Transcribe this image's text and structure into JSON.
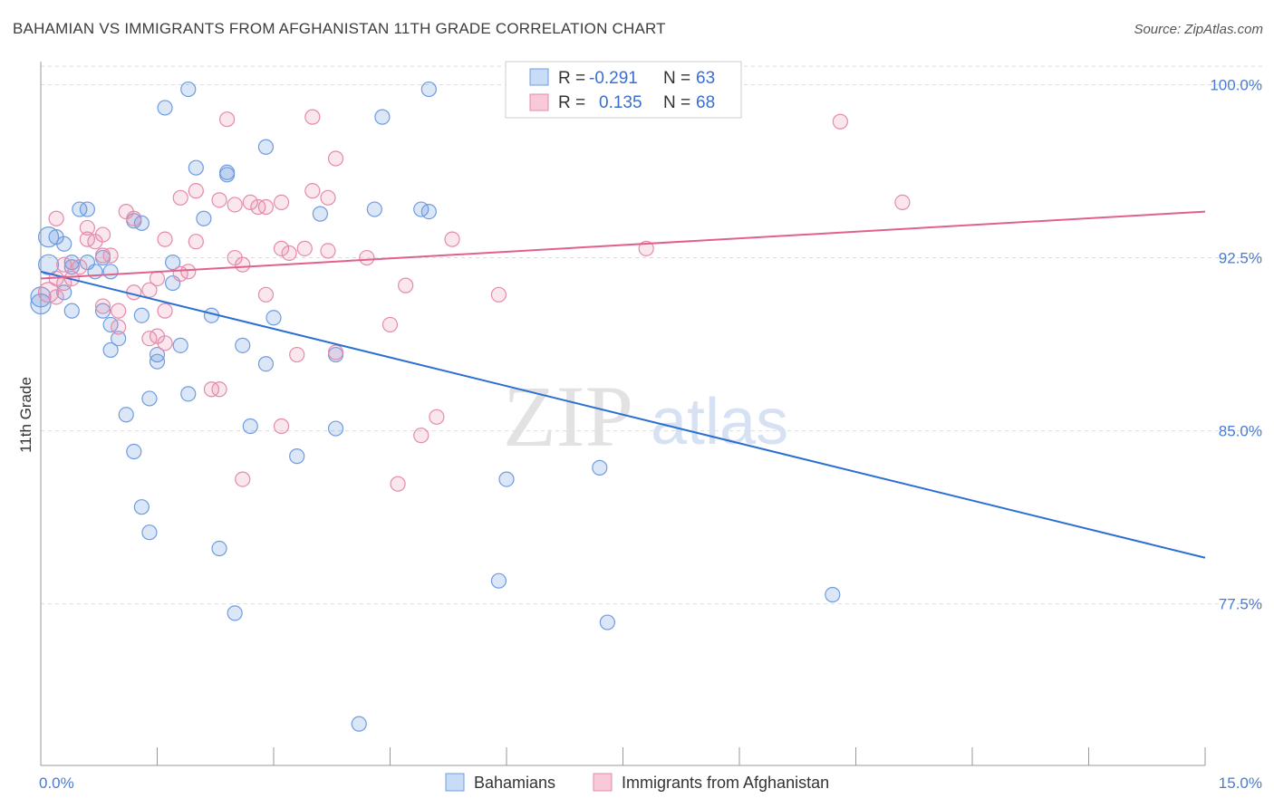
{
  "title": "BAHAMIAN VS IMMIGRANTS FROM AFGHANISTAN 11TH GRADE CORRELATION CHART",
  "source": "Source: ZipAtlas.com",
  "watermark": {
    "zip": "ZIP",
    "atlas": "atlas"
  },
  "legend_box": {
    "rows": [
      {
        "r_label": "R =",
        "r_value": "-0.291",
        "n_label": "N =",
        "n_value": "63"
      },
      {
        "r_label": "R =",
        "r_value": "0.135",
        "n_label": "N =",
        "n_value": "68"
      }
    ]
  },
  "chart_data": {
    "type": "scatter",
    "title": "BAHAMIAN VS IMMIGRANTS FROM AFGHANISTAN 11TH GRADE CORRELATION CHART",
    "xlabel": "",
    "ylabel": "11th Grade",
    "xlim": [
      0,
      15
    ],
    "ylim": [
      70.5,
      101
    ],
    "x_tick_labels": [
      "0.0%",
      "15.0%"
    ],
    "y_ticks": [
      77.5,
      85.0,
      92.5,
      100.0
    ],
    "y_tick_labels": [
      "77.5%",
      "85.0%",
      "92.5%",
      "100.0%"
    ],
    "grid": true,
    "legend_position": "bottom",
    "colors": {
      "blue": "#5b8fd9",
      "pink": "#e886a8",
      "blue_line": "#2a6fd1",
      "pink_line": "#e0628c"
    },
    "series": [
      {
        "name": "Bahamians",
        "color": "#5b8fd9",
        "trend": {
          "x": [
            0,
            15
          ],
          "y": [
            91.9,
            79.5
          ]
        },
        "points": [
          [
            1.9,
            99.8
          ],
          [
            5.0,
            99.8
          ],
          [
            1.6,
            99.0
          ],
          [
            4.4,
            98.6
          ],
          [
            2.9,
            97.3
          ],
          [
            2.0,
            96.4
          ],
          [
            2.4,
            96.2
          ],
          [
            2.4,
            96.1
          ],
          [
            0.5,
            94.6
          ],
          [
            0.6,
            94.6
          ],
          [
            4.3,
            94.6
          ],
          [
            4.9,
            94.6
          ],
          [
            5.0,
            94.5
          ],
          [
            3.6,
            94.4
          ],
          [
            2.1,
            94.2
          ],
          [
            1.2,
            94.1
          ],
          [
            1.3,
            94.0
          ],
          [
            0.1,
            93.4
          ],
          [
            0.2,
            93.4
          ],
          [
            0.3,
            93.1
          ],
          [
            0.4,
            92.3
          ],
          [
            0.6,
            92.3
          ],
          [
            0.8,
            92.5
          ],
          [
            1.7,
            92.3
          ],
          [
            0.1,
            92.2
          ],
          [
            0.4,
            92.1
          ],
          [
            0.7,
            91.9
          ],
          [
            0.9,
            91.9
          ],
          [
            1.7,
            91.4
          ],
          [
            0.3,
            91.0
          ],
          [
            0.0,
            90.8
          ],
          [
            0.0,
            90.5
          ],
          [
            0.8,
            90.2
          ],
          [
            1.3,
            90.0
          ],
          [
            2.2,
            90.0
          ],
          [
            3.0,
            89.9
          ],
          [
            0.9,
            89.6
          ],
          [
            1.0,
            89.0
          ],
          [
            0.9,
            88.5
          ],
          [
            1.5,
            88.3
          ],
          [
            1.5,
            88.0
          ],
          [
            2.6,
            88.7
          ],
          [
            1.8,
            88.7
          ],
          [
            3.8,
            88.3
          ],
          [
            2.9,
            87.9
          ],
          [
            1.9,
            86.6
          ],
          [
            1.4,
            86.4
          ],
          [
            1.1,
            85.7
          ],
          [
            2.7,
            85.2
          ],
          [
            3.8,
            85.1
          ],
          [
            3.3,
            83.9
          ],
          [
            1.2,
            84.1
          ],
          [
            6.0,
            82.9
          ],
          [
            7.2,
            83.4
          ],
          [
            1.3,
            81.7
          ],
          [
            1.4,
            80.6
          ],
          [
            2.3,
            79.9
          ],
          [
            5.9,
            78.5
          ],
          [
            10.2,
            77.9
          ],
          [
            2.5,
            77.1
          ],
          [
            7.3,
            76.7
          ],
          [
            4.1,
            72.3
          ],
          [
            0.4,
            90.2
          ]
        ]
      },
      {
        "name": "Immigrants from Afghanistan",
        "color": "#e886a8",
        "trend": {
          "x": [
            0,
            15
          ],
          "y": [
            91.6,
            94.5
          ]
        },
        "points": [
          [
            7.4,
            99.9
          ],
          [
            2.4,
            98.5
          ],
          [
            3.5,
            98.6
          ],
          [
            10.3,
            98.4
          ],
          [
            3.8,
            96.8
          ],
          [
            2.0,
            95.4
          ],
          [
            2.9,
            94.7
          ],
          [
            1.8,
            95.1
          ],
          [
            2.3,
            95.0
          ],
          [
            3.5,
            95.4
          ],
          [
            3.7,
            95.1
          ],
          [
            2.7,
            94.9
          ],
          [
            2.5,
            94.8
          ],
          [
            2.8,
            94.7
          ],
          [
            3.1,
            94.9
          ],
          [
            1.1,
            94.5
          ],
          [
            11.1,
            94.9
          ],
          [
            0.2,
            94.2
          ],
          [
            1.2,
            94.2
          ],
          [
            0.6,
            93.8
          ],
          [
            0.8,
            93.5
          ],
          [
            0.6,
            93.3
          ],
          [
            0.7,
            93.2
          ],
          [
            1.6,
            93.3
          ],
          [
            2.0,
            93.2
          ],
          [
            5.3,
            93.3
          ],
          [
            3.1,
            92.9
          ],
          [
            3.4,
            92.9
          ],
          [
            3.7,
            92.8
          ],
          [
            3.2,
            92.7
          ],
          [
            0.8,
            92.6
          ],
          [
            0.9,
            92.6
          ],
          [
            2.5,
            92.5
          ],
          [
            2.6,
            92.2
          ],
          [
            4.2,
            92.5
          ],
          [
            7.8,
            92.9
          ],
          [
            0.3,
            92.2
          ],
          [
            0.5,
            92.1
          ],
          [
            1.5,
            91.6
          ],
          [
            1.8,
            91.8
          ],
          [
            1.9,
            91.9
          ],
          [
            0.2,
            91.6
          ],
          [
            0.3,
            91.4
          ],
          [
            4.7,
            91.3
          ],
          [
            1.4,
            91.1
          ],
          [
            1.2,
            91.0
          ],
          [
            5.9,
            90.9
          ],
          [
            2.9,
            90.9
          ],
          [
            0.8,
            90.4
          ],
          [
            1.0,
            90.2
          ],
          [
            1.6,
            90.2
          ],
          [
            4.5,
            89.6
          ],
          [
            1.0,
            89.5
          ],
          [
            1.5,
            89.1
          ],
          [
            1.4,
            89.0
          ],
          [
            1.6,
            88.8
          ],
          [
            3.3,
            88.3
          ],
          [
            3.8,
            88.4
          ],
          [
            2.2,
            86.8
          ],
          [
            2.3,
            86.8
          ],
          [
            5.1,
            85.6
          ],
          [
            3.1,
            85.2
          ],
          [
            4.9,
            84.8
          ],
          [
            2.6,
            82.9
          ],
          [
            4.6,
            82.7
          ],
          [
            0.1,
            91.0
          ],
          [
            0.2,
            90.8
          ],
          [
            0.4,
            91.6
          ]
        ]
      }
    ]
  }
}
